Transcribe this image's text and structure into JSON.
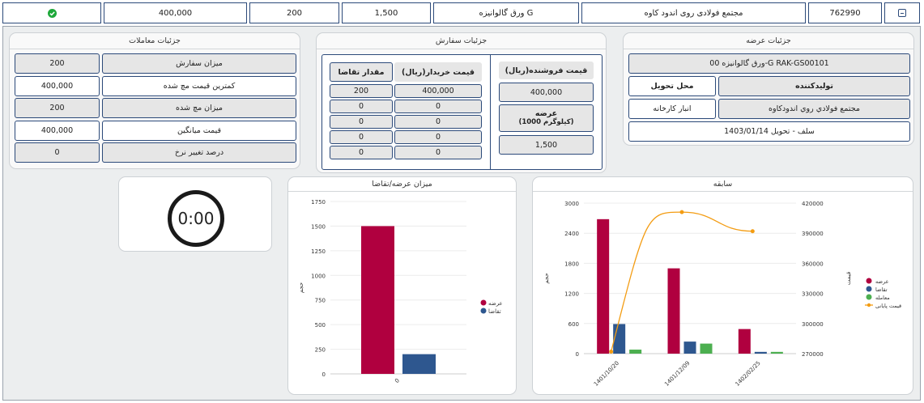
{
  "top_row": {
    "symbol_code": "762990",
    "supplier": "مجتمع فولادی روی اندود کاوه",
    "product": "ورق گالوانیزه G",
    "price": "1,500",
    "quantity": "200",
    "total": "400,000"
  },
  "offer_details": {
    "title": "جزئیات عرضه",
    "product_code": "ورق گالوانیزه 00-G RAK-GS00101",
    "producer_header": "تولیدکننده",
    "delivery_place_header": "محل تحویل",
    "producer": "مجتمع فولادي روي اندودكاوه",
    "delivery_place": "انبار کارخانه",
    "delivery": "سلف - تحویل 1403/01/14"
  },
  "order_details": {
    "title": "جزئیات سفارش",
    "seller_price_header": "قیمت فروشنده(ریال)",
    "seller_price": "400,000",
    "supply_header": "عرضه",
    "supply_unit": "(1000 کیلوگرم)",
    "supply_value": "1,500",
    "buyer_price_header": "قیمت خریدار(ریال)",
    "demand_qty_header": "مقدار تقاضا",
    "rows": [
      {
        "price": "400,000",
        "qty": "200"
      },
      {
        "price": "0",
        "qty": "0"
      },
      {
        "price": "0",
        "qty": "0"
      },
      {
        "price": "0",
        "qty": "0"
      },
      {
        "price": "0",
        "qty": "0"
      }
    ]
  },
  "trade_details": {
    "title": "جزئیات معاملات",
    "rows": [
      {
        "label": "میزان سفارش",
        "value": "200"
      },
      {
        "label": "کمترین قیمت مچ شده",
        "value": "400,000"
      },
      {
        "label": "میزان مچ شده",
        "value": "200"
      },
      {
        "label": "قیمت میانگین",
        "value": "400,000"
      },
      {
        "label": "درصد تغییر نرخ",
        "value": "0"
      }
    ]
  },
  "timer": {
    "value": "0:00"
  },
  "colors": {
    "supply": "#b0003f",
    "demand": "#2e578f",
    "matched": "#4caf50",
    "final_price": "#f39c12",
    "success": "#1ea83a"
  },
  "chart_data": [
    {
      "type": "bar",
      "title": "میزان عرضه/تقاضا",
      "ylabel": "حجم",
      "categories": [
        "0"
      ],
      "series": [
        {
          "name": "عرضه",
          "values": [
            1500
          ]
        },
        {
          "name": "تقاضا",
          "values": [
            200
          ]
        }
      ],
      "ylim": [
        0,
        1750
      ],
      "yticks": [
        0,
        250,
        500,
        750,
        1000,
        1250,
        1500,
        1750
      ],
      "legend": "right",
      "grid": true
    },
    {
      "type": "bar",
      "title": "سابقه",
      "ylabel": "حجم",
      "y2label": "قیمت",
      "categories": [
        "1401/10/20",
        "1401/12/09",
        "1402/02/25"
      ],
      "series": [
        {
          "name": "عرضه",
          "values": [
            2680,
            1700,
            490
          ]
        },
        {
          "name": "تقاضا",
          "values": [
            590,
            240,
            35
          ]
        },
        {
          "name": "معامله",
          "values": [
            80,
            200,
            35
          ]
        },
        {
          "name": "قیمت پایانی",
          "axis": "right",
          "type": "line",
          "values": [
            272000,
            411000,
            392000
          ]
        }
      ],
      "ylim": [
        0,
        3000
      ],
      "yticks": [
        0,
        600,
        1200,
        1800,
        2400,
        3000
      ],
      "y2lim": [
        270000,
        420000
      ],
      "y2ticks": [
        270000,
        300000,
        330000,
        360000,
        390000,
        420000
      ],
      "legend": "right",
      "grid": true
    }
  ]
}
